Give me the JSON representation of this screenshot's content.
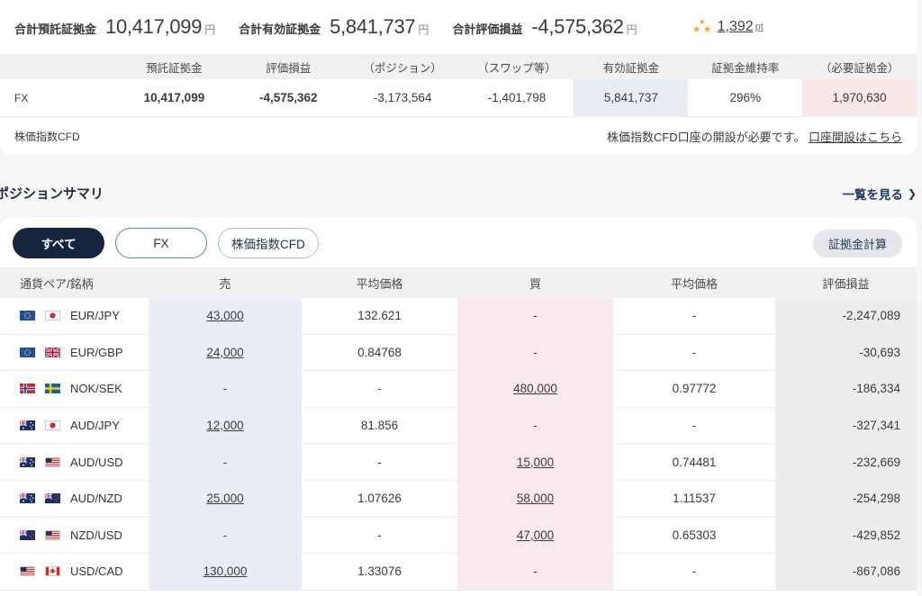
{
  "summary_bar": {
    "items": [
      {
        "label": "合計預託証拠金",
        "value": "10,417,099",
        "unit": "円"
      },
      {
        "label": "合計有効証拠金",
        "value": "5,841,737",
        "unit": "円"
      },
      {
        "label": "合計評価損益",
        "value": "-4,575,362",
        "unit": "円"
      }
    ],
    "points": {
      "value": "1,392",
      "unit": "pt"
    }
  },
  "account_table": {
    "headers": [
      "預託証拠金",
      "評価損益",
      "（ポジション）",
      "（スワップ等）",
      "有効証拠金",
      "証拠金維持率",
      "（必要証拠金）"
    ],
    "fx_row": {
      "label": "FX",
      "values": [
        "10,417,099",
        "-4,575,362",
        "-3,173,564",
        "-1,401,798",
        "5,841,737",
        "296%",
        "1,970,630"
      ]
    },
    "cfd_row": {
      "label": "株価指数CFD",
      "message": "株価指数CFD口座の開設が必要です。",
      "link": "口座開設はこちら"
    }
  },
  "position_summary": {
    "title": "ポジションサマリ",
    "view_all": "一覧を見る",
    "view_all_chevron": "❯",
    "tabs": [
      {
        "label": "すべて",
        "active": true
      },
      {
        "label": "FX",
        "active": false
      },
      {
        "label": "株価指数CFD",
        "active": false
      }
    ],
    "calc_button": "証拠金計算",
    "table": {
      "headers": [
        "通貨ペア/銘柄",
        "売",
        "平均価格",
        "買",
        "平均価格",
        "評価損益"
      ],
      "rows": [
        {
          "pair": "EUR/JPY",
          "flags": [
            "eur",
            "jpy"
          ],
          "sell": "43,000",
          "sell_avg": "132.621",
          "buy": "-",
          "buy_avg": "-",
          "pl": "-2,247,089"
        },
        {
          "pair": "EUR/GBP",
          "flags": [
            "eur",
            "gbp"
          ],
          "sell": "24,000",
          "sell_avg": "0.84768",
          "buy": "-",
          "buy_avg": "-",
          "pl": "-30,693"
        },
        {
          "pair": "NOK/SEK",
          "flags": [
            "nok",
            "sek"
          ],
          "sell": "-",
          "sell_avg": "-",
          "buy": "480,000",
          "buy_avg": "0.97772",
          "pl": "-186,334"
        },
        {
          "pair": "AUD/JPY",
          "flags": [
            "aud",
            "jpy"
          ],
          "sell": "12,000",
          "sell_avg": "81.856",
          "buy": "-",
          "buy_avg": "-",
          "pl": "-327,341"
        },
        {
          "pair": "AUD/USD",
          "flags": [
            "aud",
            "usd"
          ],
          "sell": "-",
          "sell_avg": "-",
          "buy": "15,000",
          "buy_avg": "0.74481",
          "pl": "-232,669"
        },
        {
          "pair": "AUD/NZD",
          "flags": [
            "aud",
            "nzd"
          ],
          "sell": "25,000",
          "sell_avg": "1.07626",
          "buy": "58,000",
          "buy_avg": "1.11537",
          "pl": "-254,298"
        },
        {
          "pair": "NZD/USD",
          "flags": [
            "nzd",
            "usd"
          ],
          "sell": "-",
          "sell_avg": "-",
          "buy": "47,000",
          "buy_avg": "0.65303",
          "pl": "-429,852"
        },
        {
          "pair": "USD/CAD",
          "flags": [
            "usd",
            "cad"
          ],
          "sell": "130,000",
          "sell_avg": "1.33076",
          "buy": "-",
          "buy_avg": "-",
          "pl": "-867,086"
        }
      ]
    }
  },
  "colors": {
    "accent_navy": "#14253d",
    "sell_column_bg": "#e9eef5",
    "buy_column_bg": "#f9e9ec",
    "pl_column_bg": "#ededef",
    "star_gold": "#f2a63b"
  }
}
